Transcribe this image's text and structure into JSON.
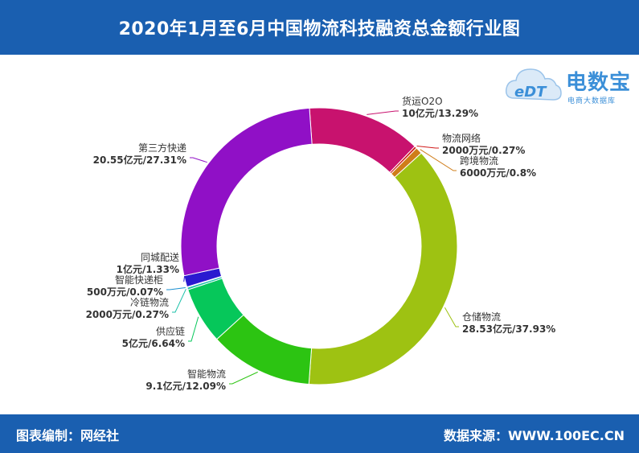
{
  "header": {
    "title": "2020年1月至6月中国物流科技融资总金额行业图"
  },
  "logo": {
    "brand": "电数宝",
    "sub": "电商大数据库",
    "mark": "eDT"
  },
  "footer": {
    "left": "图表编制：网经社",
    "right": "数据来源：WWW.100EC.CN"
  },
  "chart_data": {
    "type": "pie",
    "style": "donut",
    "slices": [
      {
        "name": "货运O2O",
        "label": "10亿元/13.29%",
        "value": 13.29,
        "color": "#c8126e"
      },
      {
        "name": "物流网络",
        "label": "2000万元/0.27%",
        "value": 0.27,
        "color": "#d11a1a"
      },
      {
        "name": "跨境物流",
        "label": "6000万元/0.8%",
        "value": 0.8,
        "color": "#cf7d1a"
      },
      {
        "name": "仓储物流",
        "label": "28.53亿元/37.93%",
        "value": 37.93,
        "color": "#9ec212"
      },
      {
        "name": "智能物流",
        "label": "9.1亿元/12.09%",
        "value": 12.09,
        "color": "#2cc412"
      },
      {
        "name": "供应链",
        "label": "5亿元/6.64%",
        "value": 6.64,
        "color": "#06c75a"
      },
      {
        "name": "冷链物流",
        "label": "2000万元/0.27%",
        "value": 0.27,
        "color": "#1ac0a8"
      },
      {
        "name": "智能快递柜",
        "label": "500万元/0.07%",
        "value": 0.07,
        "color": "#1a8fd0"
      },
      {
        "name": "同城配送",
        "label": "1亿元/1.33%",
        "value": 1.33,
        "color": "#2a1ad0"
      },
      {
        "name": "第三方快递",
        "label": "20.55亿元/27.31%",
        "value": 27.31,
        "color": "#9010c6"
      }
    ]
  }
}
